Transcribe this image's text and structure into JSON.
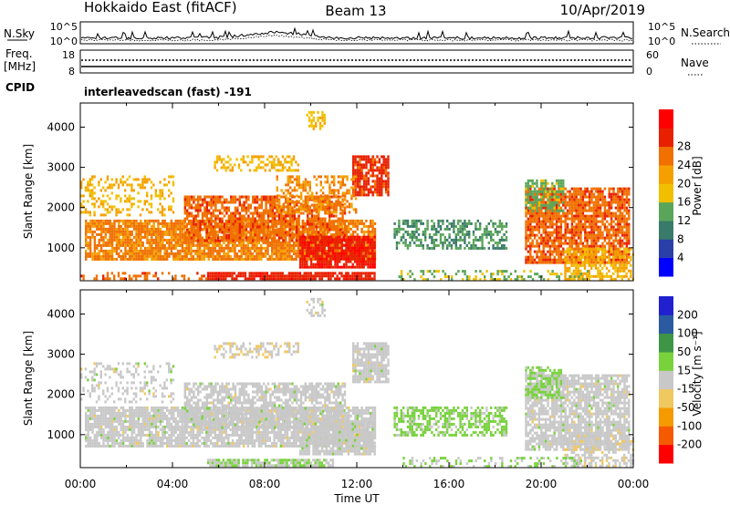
{
  "header": {
    "radar_title": "Hokkaido East (fitACF)",
    "beam": "Beam 13",
    "date": "10/Apr/2019"
  },
  "summary_panels": {
    "nsky_label": "N.Sky",
    "nsky_ticks": [
      "10^5",
      "10^0"
    ],
    "nsearch_label": "N.Search",
    "nsearch_ticks": [
      "10^5",
      "10^0"
    ],
    "freq_label_1": "Freq.",
    "freq_label_2": "[MHz]",
    "freq_ticks": [
      "18",
      "8"
    ],
    "nave_label": "Nave",
    "nave_ticks": [
      "60",
      "0"
    ],
    "cpid_label": "CPID",
    "cpid_value": "interleavedscan (fast) -191"
  },
  "chart_data": [
    {
      "type": "heatmap",
      "name": "power-panel",
      "ylabel": "Slant Range [km]",
      "ylim": [
        180,
        4600
      ],
      "yticks": [
        "1000",
        "2000",
        "3000",
        "4000"
      ],
      "ytick_values": [
        1000,
        2000,
        3000,
        4000
      ],
      "xlim_hours": [
        0,
        24
      ],
      "colorbar_label": "Power [dB]",
      "colorbar_ticks": [
        "4",
        "8",
        "12",
        "16",
        "20",
        "24",
        "28"
      ],
      "colorbar_range": [
        0,
        32
      ],
      "colorbar_colors": [
        "#0000ff",
        "#2a3fa8",
        "#3a7a6a",
        "#5aa55a",
        "#f0c000",
        "#f5a000",
        "#f07000",
        "#e82000",
        "#ff0000"
      ],
      "regions": [
        {
          "t0": 0.2,
          "t1": 12.8,
          "r0": 700,
          "r1": 1700,
          "v": 22,
          "d": 0.85
        },
        {
          "t0": 4.5,
          "t1": 11.5,
          "r0": 1200,
          "r1": 2300,
          "v": 24,
          "d": 0.7
        },
        {
          "t0": 5.5,
          "t1": 12.8,
          "r0": 230,
          "r1": 400,
          "v": 27,
          "d": 0.85
        },
        {
          "t0": 0.0,
          "t1": 5.5,
          "r0": 230,
          "r1": 400,
          "v": 24,
          "d": 0.35
        },
        {
          "t0": 9.5,
          "t1": 12.8,
          "r0": 550,
          "r1": 1300,
          "v": 28,
          "d": 0.85
        },
        {
          "t0": 11.8,
          "t1": 13.4,
          "r0": 2300,
          "r1": 3300,
          "v": 26,
          "d": 0.85
        },
        {
          "t0": 5.8,
          "t1": 9.5,
          "r0": 2900,
          "r1": 3300,
          "v": 18,
          "d": 0.45
        },
        {
          "t0": 8.5,
          "t1": 12.0,
          "r0": 1900,
          "r1": 2800,
          "v": 21,
          "d": 0.45
        },
        {
          "t0": 13.6,
          "t1": 18.5,
          "r0": 1000,
          "r1": 1700,
          "v": 11,
          "d": 0.55
        },
        {
          "t0": 19.3,
          "t1": 23.8,
          "r0": 600,
          "r1": 2500,
          "v": 24,
          "d": 0.8
        },
        {
          "t0": 21.0,
          "t1": 24.0,
          "r0": 250,
          "r1": 1000,
          "v": 18,
          "d": 0.55
        },
        {
          "t0": 19.3,
          "t1": 21.0,
          "r0": 1900,
          "r1": 2700,
          "v": 13,
          "d": 0.6
        },
        {
          "t0": 13.8,
          "t1": 22.0,
          "r0": 230,
          "r1": 450,
          "v": 14,
          "d": 0.3
        },
        {
          "t0": 9.8,
          "t1": 10.6,
          "r0": 3950,
          "r1": 4400,
          "v": 17,
          "d": 0.5
        },
        {
          "t0": 0.0,
          "t1": 4.0,
          "r0": 1800,
          "r1": 2800,
          "v": 18,
          "d": 0.35
        }
      ]
    },
    {
      "type": "heatmap",
      "name": "velocity-panel",
      "ylabel": "Slant Range [km]",
      "ylim": [
        180,
        4600
      ],
      "yticks": [
        "1000",
        "2000",
        "3000",
        "4000"
      ],
      "ytick_values": [
        1000,
        2000,
        3000,
        4000
      ],
      "xlim_hours": [
        0,
        24
      ],
      "xticks": [
        "00:00",
        "04:00",
        "08:00",
        "12:00",
        "16:00",
        "20:00",
        "00:00"
      ],
      "xlabel": "Time UT",
      "colorbar_label": "Velocity [m s⁻¹]",
      "colorbar_ticks": [
        "-200",
        "-100",
        "-50",
        "-15",
        "15",
        "50",
        "100",
        "200"
      ],
      "colorbar_range": [
        -250,
        250
      ],
      "colorbar_colors": [
        "#ff0000",
        "#f55a00",
        "#f59a00",
        "#f0c860",
        "#c8c8c8",
        "#78d23c",
        "#3c9646",
        "#2a5aa0",
        "#2020d0"
      ],
      "regions": [
        {
          "t0": 0.2,
          "t1": 12.8,
          "r0": 700,
          "r1": 1700,
          "v": 0,
          "d": 0.85
        },
        {
          "t0": 4.5,
          "t1": 11.5,
          "r0": 1200,
          "r1": 2300,
          "v": 0,
          "d": 0.7
        },
        {
          "t0": 5.5,
          "t1": 11.0,
          "r0": 230,
          "r1": 400,
          "v": 30,
          "d": 0.85
        },
        {
          "t0": 9.5,
          "t1": 12.8,
          "r0": 550,
          "r1": 1300,
          "v": 0,
          "d": 0.85
        },
        {
          "t0": 11.8,
          "t1": 13.4,
          "r0": 2300,
          "r1": 3300,
          "v": 0,
          "d": 0.8
        },
        {
          "t0": 13.6,
          "t1": 18.5,
          "r0": 1000,
          "r1": 1700,
          "v": 45,
          "d": 0.6
        },
        {
          "t0": 19.3,
          "t1": 23.8,
          "r0": 600,
          "r1": 2500,
          "v": 0,
          "d": 0.8
        },
        {
          "t0": 21.0,
          "t1": 24.0,
          "r0": 250,
          "r1": 1000,
          "v": -10,
          "d": 0.5
        },
        {
          "t0": 19.3,
          "t1": 21.0,
          "r0": 1900,
          "r1": 2700,
          "v": 40,
          "d": 0.55
        },
        {
          "t0": 13.8,
          "t1": 22.0,
          "r0": 230,
          "r1": 450,
          "v": 30,
          "d": 0.3
        },
        {
          "t0": 5.8,
          "t1": 9.5,
          "r0": 2900,
          "r1": 3300,
          "v": -20,
          "d": 0.4
        },
        {
          "t0": 9.8,
          "t1": 10.6,
          "r0": 3950,
          "r1": 4400,
          "v": 0,
          "d": 0.5
        },
        {
          "t0": 0.0,
          "t1": 4.0,
          "r0": 1800,
          "r1": 2800,
          "v": 0,
          "d": 0.3
        }
      ]
    }
  ]
}
